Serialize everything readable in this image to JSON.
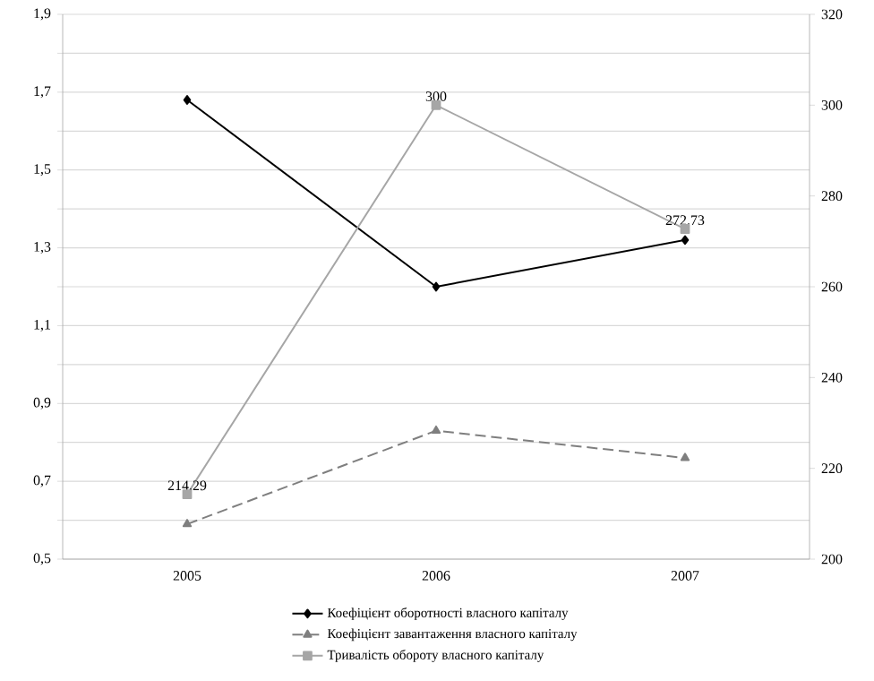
{
  "chart_data": {
    "type": "line",
    "categories": [
      "2005",
      "2006",
      "2007"
    ],
    "series": [
      {
        "name": "Коефіцієнт оборотності власного капіталу",
        "color": "#000000",
        "values": [
          1.68,
          1.2,
          1.32
        ],
        "marker": "diamond",
        "line_style": "solid"
      },
      {
        "name": "Коефіцієнт завантаження власного капіталу",
        "color": "#7f7f7f",
        "values": [
          0.59,
          0.83,
          0.76
        ],
        "marker": "triangle",
        "line_style": "dashed"
      },
      {
        "name": "Тривалість обороту власного капіталу",
        "color": "#a6a6a6",
        "values": [
          214.29,
          300,
          272.73
        ],
        "marker": "square",
        "line_style": "solid",
        "axis": "y2",
        "value_labels": [
          "214.29",
          "300",
          "272.73"
        ]
      }
    ],
    "ylim": [
      0.5,
      1.9
    ],
    "yticks": [
      {
        "value": 0.5,
        "label": "0,5"
      },
      {
        "value": 0.6,
        "label": null
      },
      {
        "value": 0.7,
        "label": "0,7"
      },
      {
        "value": 0.8,
        "label": null
      },
      {
        "value": 0.9,
        "label": "0,9"
      },
      {
        "value": 1.0,
        "label": null
      },
      {
        "value": 1.1,
        "label": "1,1"
      },
      {
        "value": 1.2,
        "label": null
      },
      {
        "value": 1.3,
        "label": "1,3"
      },
      {
        "value": 1.4,
        "label": null
      },
      {
        "value": 1.5,
        "label": "1,5"
      },
      {
        "value": 1.6,
        "label": null
      },
      {
        "value": 1.7,
        "label": "1,7"
      },
      {
        "value": 1.8,
        "label": null
      },
      {
        "value": 1.9,
        "label": "1,9"
      }
    ],
    "y2lim": [
      200,
      320
    ],
    "y2ticks": [
      200,
      220,
      240,
      260,
      280,
      300,
      320
    ],
    "grid": "y",
    "legend": "bottom"
  }
}
